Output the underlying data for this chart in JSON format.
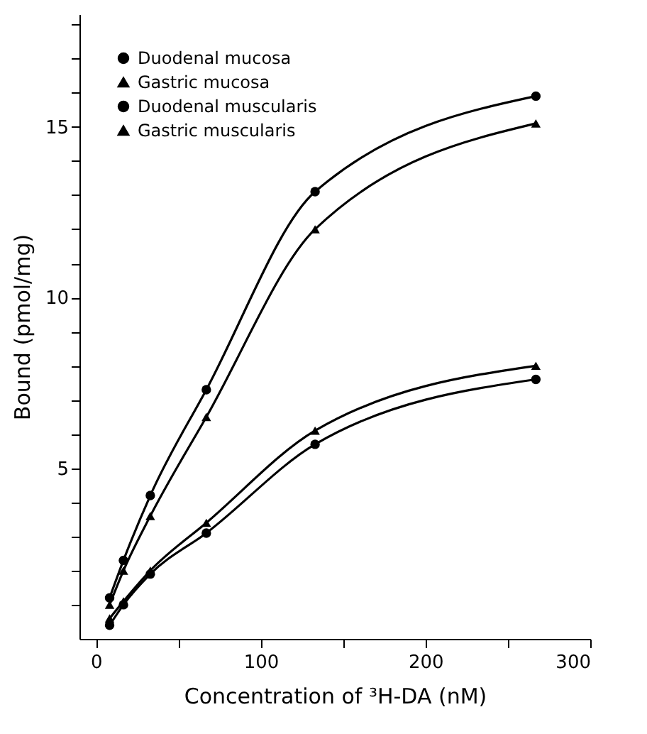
{
  "chart_data": {
    "type": "line",
    "xlabel": "Concentration of ³H-DA (nM)",
    "ylabel": "Bound (pmol/mg)",
    "x": [
      8.3,
      16.7,
      33,
      67,
      133,
      267
    ],
    "xlim": [
      -10,
      300
    ],
    "xticks": [
      0,
      {
        "value": 50,
        "label": null
      },
      100,
      {
        "value": 150,
        "label": null
      },
      200,
      {
        "value": 250,
        "label": null
      },
      300
    ],
    "ylim": [
      0,
      18.3
    ],
    "yticks": [
      {
        "value": 1,
        "label": null
      },
      {
        "value": 2,
        "label": null
      },
      {
        "value": 3,
        "label": null
      },
      {
        "value": 4,
        "label": null
      },
      5,
      {
        "value": 6,
        "label": null
      },
      {
        "value": 7,
        "label": null
      },
      {
        "value": 8,
        "label": null
      },
      {
        "value": 9,
        "label": null
      },
      10,
      {
        "value": 11,
        "label": null
      },
      {
        "value": 12,
        "label": null
      },
      {
        "value": 13,
        "label": null
      },
      {
        "value": 14,
        "label": null
      },
      15,
      {
        "value": 16,
        "label": null
      },
      {
        "value": 17,
        "label": null
      },
      {
        "value": 18,
        "label": null
      }
    ],
    "grid": false,
    "legend": "top left",
    "line_style": "solid",
    "series": [
      {
        "name": "Duodenal mucosa",
        "color": "#000000",
        "marker": "circle",
        "values": [
          0.4,
          1.0,
          1.9,
          3.1,
          5.7,
          7.6
        ]
      },
      {
        "name": "Gastric mucosa",
        "color": "#000000",
        "marker": "triangle",
        "values": [
          0.6,
          1.1,
          2.0,
          3.4,
          6.1,
          8.0
        ]
      },
      {
        "name": "Duodenal muscularis",
        "color": "#000000",
        "marker": "circle",
        "values": [
          1.2,
          2.3,
          4.2,
          7.3,
          13.1,
          15.9
        ]
      },
      {
        "name": "Gastric muscularis",
        "color": "#000000",
        "marker": "triangle",
        "values": [
          1.0,
          2.0,
          3.6,
          6.5,
          12.0,
          15.1
        ]
      }
    ]
  }
}
